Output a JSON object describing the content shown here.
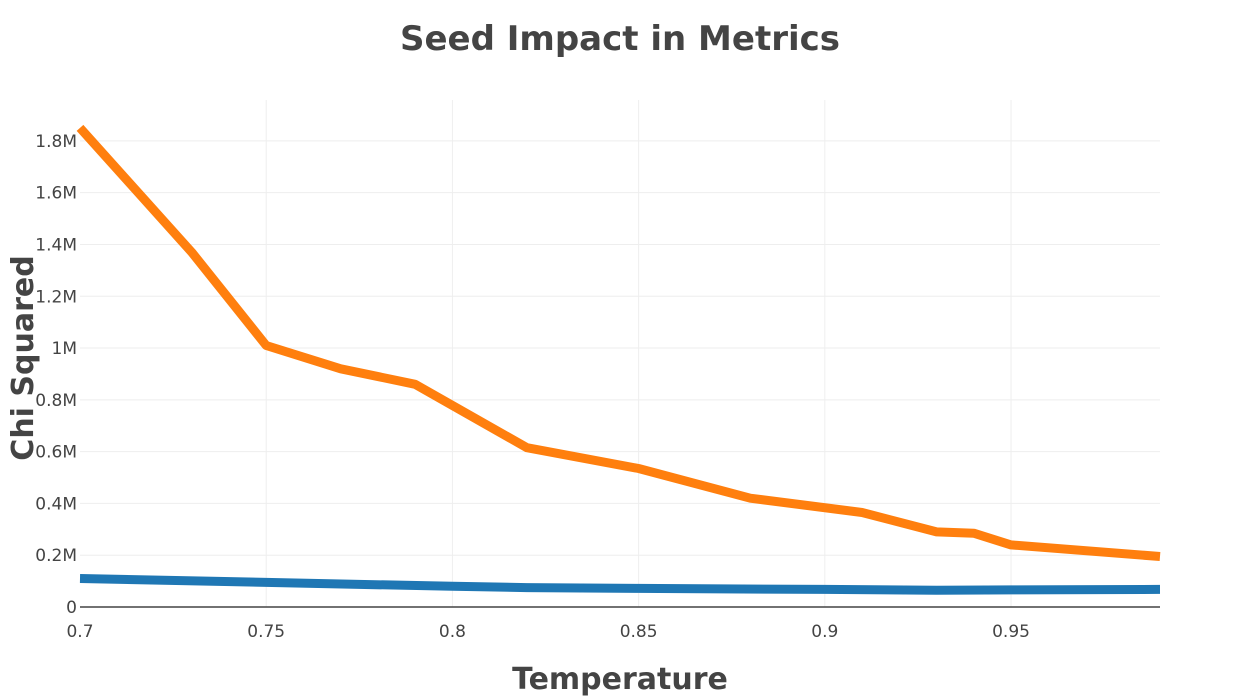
{
  "chart_data": {
    "type": "line",
    "title": "Seed Impact in Metrics",
    "xlabel": "Temperature",
    "ylabel": "Chi Squared",
    "xlim": [
      0.7,
      0.99
    ],
    "ylim": [
      0,
      1900000
    ],
    "grid": true,
    "x_ticks": [
      {
        "value": 0.7,
        "label": "0.7"
      },
      {
        "value": 0.75,
        "label": "0.75"
      },
      {
        "value": 0.8,
        "label": "0.8"
      },
      {
        "value": 0.85,
        "label": "0.85"
      },
      {
        "value": 0.9,
        "label": "0.9"
      },
      {
        "value": 0.95,
        "label": "0.95"
      }
    ],
    "y_ticks": [
      {
        "value": 0,
        "label": "0"
      },
      {
        "value": 200000,
        "label": "0.2M"
      },
      {
        "value": 400000,
        "label": "0.4M"
      },
      {
        "value": 600000,
        "label": "0.6M"
      },
      {
        "value": 800000,
        "label": "0.8M"
      },
      {
        "value": 1000000,
        "label": "1M"
      },
      {
        "value": 1200000,
        "label": "1.2M"
      },
      {
        "value": 1400000,
        "label": "1.4M"
      },
      {
        "value": 1600000,
        "label": "1.6M"
      },
      {
        "value": 1800000,
        "label": "1.8M"
      }
    ],
    "series": [
      {
        "name": "orange-series",
        "color": "#ff7f0e",
        "x": [
          0.7,
          0.73,
          0.75,
          0.77,
          0.79,
          0.82,
          0.85,
          0.88,
          0.91,
          0.93,
          0.94,
          0.95,
          0.99
        ],
        "y": [
          1850000,
          1370000,
          1010000,
          920000,
          860000,
          615000,
          535000,
          420000,
          365000,
          290000,
          285000,
          240000,
          195000
        ]
      },
      {
        "name": "blue-series",
        "color": "#1f77b4",
        "x": [
          0.7,
          0.75,
          0.8,
          0.82,
          0.85,
          0.9,
          0.93,
          0.95,
          0.99
        ],
        "y": [
          110000,
          95000,
          80000,
          75000,
          72000,
          68000,
          65000,
          66000,
          68000
        ]
      }
    ]
  }
}
